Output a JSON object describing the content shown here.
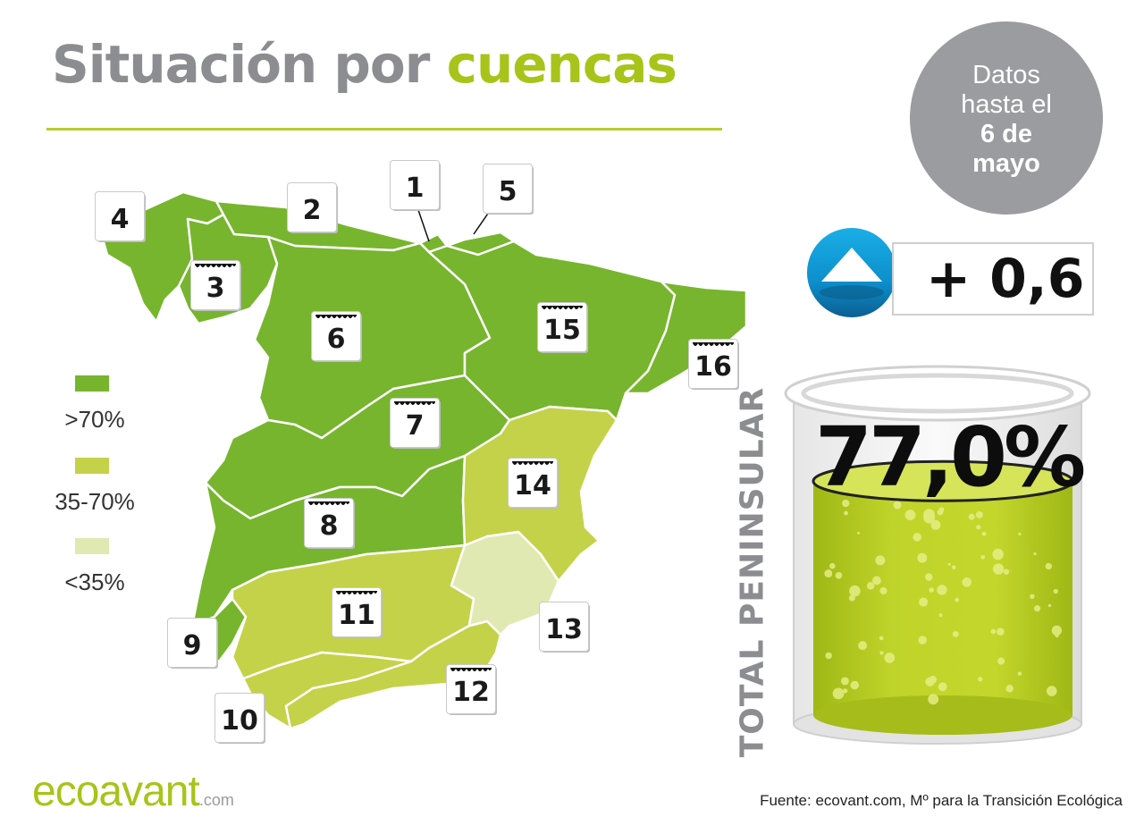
{
  "header": {
    "title_part1": "Situación por",
    "title_part2": "cuencas"
  },
  "date_badge": {
    "line1": "Datos",
    "line2": "hasta el",
    "line3": "6 de",
    "line4": "mayo"
  },
  "colors": {
    "high": "#77b52e",
    "medium": "#c4d24a",
    "low": "#e1e9b2",
    "title_grey": "#8c8d90",
    "title_green": "#a8c41a"
  },
  "legend": [
    {
      "label": ">70%",
      "level": "high"
    },
    {
      "label": "35-70%",
      "level": "medium"
    },
    {
      "label": "<35%",
      "level": "low"
    }
  ],
  "basins": [
    {
      "number": "1",
      "level": "high"
    },
    {
      "number": "2",
      "level": "high"
    },
    {
      "number": "3",
      "level": "high"
    },
    {
      "number": "4",
      "level": "high"
    },
    {
      "number": "5",
      "level": "high"
    },
    {
      "number": "6",
      "level": "high"
    },
    {
      "number": "7",
      "level": "high"
    },
    {
      "number": "8",
      "level": "high"
    },
    {
      "number": "9",
      "level": "high"
    },
    {
      "number": "10",
      "level": "medium"
    },
    {
      "number": "11",
      "level": "medium"
    },
    {
      "number": "12",
      "level": "medium"
    },
    {
      "number": "13",
      "level": "low"
    },
    {
      "number": "14",
      "level": "medium"
    },
    {
      "number": "15",
      "level": "high"
    },
    {
      "number": "16",
      "level": "high"
    }
  ],
  "trend": {
    "direction": "up",
    "icon": "up-arrow-icon",
    "value": "+ 0,6"
  },
  "total": {
    "label": "TOTAL PENINSULAR",
    "value": "77,0%",
    "fill_fraction": 0.77
  },
  "footer": {
    "logo_main": "ecoavant",
    "logo_suffix": ".com",
    "source": "Fuente: ecovant.com, Mº para la Transición Ecológica"
  }
}
